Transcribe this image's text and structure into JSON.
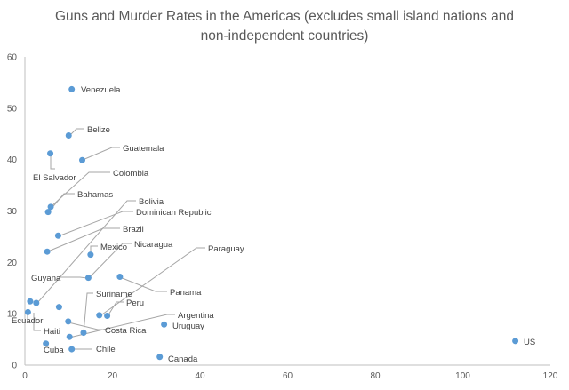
{
  "chart_data": {
    "type": "scatter",
    "title_lines": [
      "Guns and Murder Rates in the Americas (excludes small island nations and",
      "non-independent countries)"
    ],
    "xlabel": "",
    "ylabel": "",
    "xlim": [
      0,
      120
    ],
    "ylim": [
      0,
      60
    ],
    "x_ticks": [
      "0",
      "20",
      "40",
      "60",
      "80",
      "100",
      "120"
    ],
    "y_ticks": [
      "0",
      "10",
      "20",
      "30",
      "40",
      "50",
      "60"
    ],
    "grid": false,
    "legend": "none",
    "marker_color": "#5b9bd5",
    "points": [
      {
        "name": "Venezuela",
        "x": 10.7,
        "y": 53.7
      },
      {
        "name": "Belize",
        "x": 10.0,
        "y": 44.7
      },
      {
        "name": "Guatemala",
        "x": 13.1,
        "y": 39.9
      },
      {
        "name": "El Salvador",
        "x": 5.8,
        "y": 41.2
      },
      {
        "name": "Colombia",
        "x": 5.9,
        "y": 30.8
      },
      {
        "name": "Bahamas",
        "x": 5.3,
        "y": 29.8
      },
      {
        "name": "Bolivia",
        "x": 2.6,
        "y": 12.1
      },
      {
        "name": "Dominican Republic",
        "x": 7.6,
        "y": 25.2
      },
      {
        "name": "Brazil",
        "x": 5.1,
        "y": 22.1
      },
      {
        "name": "Mexico",
        "x": 15.0,
        "y": 21.5
      },
      {
        "name": "Nicaragua",
        "x": 14.5,
        "y": 17.0
      },
      {
        "name": "Paraguay",
        "x": 17.0,
        "y": 9.7
      },
      {
        "name": "Guyana",
        "x": 1.2,
        "y": 12.4
      },
      {
        "name": "Panama",
        "x": 21.7,
        "y": 17.2
      },
      {
        "name": "Suriname",
        "x": 13.4,
        "y": 6.3
      },
      {
        "name": "Peru",
        "x": 18.8,
        "y": 9.6
      },
      {
        "name": "Ecuador",
        "x": 0.7,
        "y": 10.3
      },
      {
        "name": "Argentina",
        "x": 10.2,
        "y": 5.5
      },
      {
        "name": "Haiti",
        "x": 7.8,
        "y": 11.3
      },
      {
        "name": "Costa Rica",
        "x": 9.9,
        "y": 8.5
      },
      {
        "name": "Uruguay",
        "x": 31.8,
        "y": 7.9
      },
      {
        "name": "Cuba",
        "x": 4.8,
        "y": 4.2
      },
      {
        "name": "Chile",
        "x": 10.7,
        "y": 3.1
      },
      {
        "name": "US",
        "x": 112.0,
        "y": 4.7
      },
      {
        "name": "Canada",
        "x": 30.8,
        "y": 1.6
      }
    ]
  }
}
